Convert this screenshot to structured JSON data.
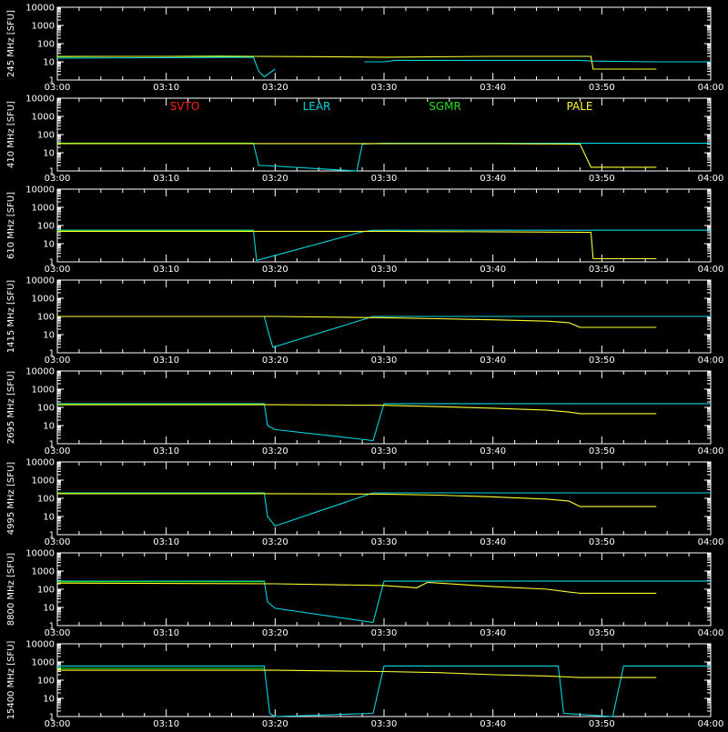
{
  "colors": {
    "background": "#000000",
    "axes": "#ffffff",
    "SVTO": "#ff2020",
    "LEAR": "#00d8e0",
    "SGMR": "#20e020",
    "PALE": "#ffff30"
  },
  "legend": [
    "SVTO",
    "LEAR",
    "SGMR",
    "PALE"
  ],
  "chart_data": [
    {
      "type": "line",
      "ylabel": "245  MHz  [SFU]",
      "xlabel": "",
      "xticks": [
        "03:00",
        "03:10",
        "03:20",
        "03:30",
        "03:40",
        "03:50",
        "04:00"
      ],
      "xlim": [
        "03:00",
        "04:00"
      ],
      "yscale": "log",
      "ylim": [
        1,
        10000
      ],
      "yticks": [
        "1",
        "10",
        "100",
        "1000",
        "10000"
      ],
      "series": [
        {
          "name": "LEAR",
          "x": [
            "03:00",
            "03:10",
            "03:18",
            "03:18.5",
            "03:19",
            "03:20",
            "03:28",
            "03:28.2",
            "03:30",
            "03:31",
            "03:40",
            "03:48",
            "03:49",
            "03:55",
            "04:00"
          ],
          "y": [
            16,
            17,
            18,
            3,
            1.5,
            4,
            null,
            10,
            10,
            12,
            12,
            12,
            11,
            10,
            10
          ]
        },
        {
          "name": "SGMR",
          "x": [
            "03:00",
            "03:05",
            "03:10",
            "03:15",
            "03:18"
          ],
          "y": [
            19,
            20,
            20,
            21,
            20
          ]
        },
        {
          "name": "PALE",
          "x": [
            "03:00",
            "03:10",
            "03:18",
            "03:25",
            "03:30",
            "03:40",
            "03:49",
            "03:49.2",
            "03:55"
          ],
          "y": [
            20,
            20,
            20,
            19,
            18,
            20,
            20,
            4,
            4
          ]
        }
      ]
    },
    {
      "type": "line",
      "ylabel": "410  MHz  [SFU]",
      "xlabel": "",
      "xticks": [
        "03:00",
        "03:10",
        "03:20",
        "03:30",
        "03:40",
        "03:50",
        "04:00"
      ],
      "xlim": [
        "03:00",
        "04:00"
      ],
      "yscale": "log",
      "ylim": [
        1,
        10000
      ],
      "yticks": [
        "1",
        "10",
        "100",
        "1000",
        "10000"
      ],
      "legend_labels": [
        "SVTO",
        "LEAR",
        "SGMR",
        "PALE"
      ],
      "series": [
        {
          "name": "LEAR",
          "x": [
            "03:00",
            "03:18",
            "03:18.5",
            "03:19",
            "03:27.5",
            "03:28",
            "03:30",
            "03:40",
            "03:49",
            "04:00"
          ],
          "y": [
            33,
            33,
            2,
            2,
            1,
            30,
            33,
            33,
            33,
            33
          ]
        },
        {
          "name": "SGMR",
          "x": [
            "03:00",
            "03:10",
            "03:18"
          ],
          "y": [
            34,
            34,
            34
          ]
        },
        {
          "name": "PALE",
          "x": [
            "03:00",
            "03:20",
            "03:30",
            "03:40",
            "03:48",
            "03:49",
            "03:55"
          ],
          "y": [
            32,
            32,
            32,
            32,
            30,
            1.6,
            1.6
          ]
        }
      ]
    },
    {
      "type": "line",
      "ylabel": "610  MHz  [SFU]",
      "xlabel": "",
      "xticks": [
        "03:00",
        "03:10",
        "03:20",
        "03:30",
        "03:40",
        "03:50",
        "04:00"
      ],
      "xlim": [
        "03:00",
        "04:00"
      ],
      "yscale": "log",
      "ylim": [
        1,
        10000
      ],
      "yticks": [
        "1",
        "10",
        "100",
        "1000",
        "10000"
      ],
      "series": [
        {
          "name": "LEAR",
          "x": [
            "03:00",
            "03:18",
            "03:18.3",
            "03:28",
            "03:29",
            "03:31",
            "03:40",
            "03:49",
            "04:00"
          ],
          "y": [
            55,
            55,
            1.2,
            45,
            55,
            55,
            55,
            55,
            55
          ]
        },
        {
          "name": "SGMR",
          "x": [
            "03:00",
            "03:10",
            "03:18"
          ],
          "y": [
            52,
            52,
            52
          ]
        },
        {
          "name": "PALE",
          "x": [
            "03:00",
            "03:20",
            "03:30",
            "03:40",
            "03:49",
            "03:49.2",
            "03:55"
          ],
          "y": [
            48,
            48,
            48,
            45,
            42,
            1.5,
            1.5
          ]
        }
      ]
    },
    {
      "type": "line",
      "ylabel": "1415  MHz  [SFU]",
      "xlabel": "",
      "xticks": [
        "03:00",
        "03:10",
        "03:20",
        "03:30",
        "03:40",
        "03:50",
        "04:00"
      ],
      "xlim": [
        "03:00",
        "04:00"
      ],
      "yscale": "log",
      "ylim": [
        1,
        10000
      ],
      "yticks": [
        "1",
        "10",
        "100",
        "1000",
        "10000"
      ],
      "series": [
        {
          "name": "LEAR",
          "x": [
            "03:00",
            "03:19",
            "03:19.3",
            "03:19.8",
            "03:29",
            "03:30",
            "03:32",
            "03:40",
            "03:50",
            "04:00"
          ],
          "y": [
            100,
            100,
            20,
            2,
            100,
            100,
            100,
            100,
            100,
            100
          ]
        },
        {
          "name": "SGMR",
          "x": [
            "03:00",
            "03:10",
            "03:19"
          ],
          "y": [
            100,
            100,
            100
          ]
        },
        {
          "name": "PALE",
          "x": [
            "03:00",
            "03:20",
            "03:30",
            "03:35",
            "03:40",
            "03:45",
            "03:47",
            "03:48",
            "03:55"
          ],
          "y": [
            100,
            100,
            85,
            75,
            65,
            55,
            45,
            25,
            25
          ]
        }
      ]
    },
    {
      "type": "line",
      "ylabel": "2695  MHz  [SFU]",
      "xlabel": "",
      "xticks": [
        "03:00",
        "03:10",
        "03:20",
        "03:30",
        "03:40",
        "03:50",
        "04:00"
      ],
      "xlim": [
        "03:00",
        "04:00"
      ],
      "yscale": "log",
      "ylim": [
        1,
        10000
      ],
      "yticks": [
        "1",
        "10",
        "100",
        "1000",
        "10000"
      ],
      "series": [
        {
          "name": "LEAR",
          "x": [
            "03:00",
            "03:19",
            "03:19.3",
            "03:20",
            "03:29",
            "03:30",
            "03:32",
            "03:40",
            "03:50",
            "04:00"
          ],
          "y": [
            160,
            160,
            10,
            6,
            1.5,
            160,
            160,
            160,
            160,
            160
          ]
        },
        {
          "name": "SGMR",
          "x": [
            "03:00",
            "03:10",
            "03:19"
          ],
          "y": [
            150,
            150,
            150
          ]
        },
        {
          "name": "PALE",
          "x": [
            "03:00",
            "03:20",
            "03:30",
            "03:35",
            "03:40",
            "03:45",
            "03:47",
            "03:48",
            "03:55"
          ],
          "y": [
            140,
            140,
            130,
            110,
            90,
            70,
            55,
            45,
            45
          ]
        }
      ]
    },
    {
      "type": "line",
      "ylabel": "4995  MHz  [SFU]",
      "xlabel": "",
      "xticks": [
        "03:00",
        "03:10",
        "03:20",
        "03:30",
        "03:40",
        "03:50",
        "04:00"
      ],
      "xlim": [
        "03:00",
        "04:00"
      ],
      "yscale": "log",
      "ylim": [
        1,
        10000
      ],
      "yticks": [
        "1",
        "10",
        "100",
        "1000",
        "10000"
      ],
      "series": [
        {
          "name": "LEAR",
          "x": [
            "03:00",
            "03:19",
            "03:19.3",
            "03:20",
            "03:29",
            "03:30",
            "03:32",
            "03:40",
            "03:50",
            "04:00"
          ],
          "y": [
            200,
            200,
            10,
            3,
            200,
            200,
            200,
            200,
            200,
            200
          ]
        },
        {
          "name": "SGMR",
          "x": [
            "03:00",
            "03:10",
            "03:19"
          ],
          "y": [
            190,
            190,
            190
          ]
        },
        {
          "name": "PALE",
          "x": [
            "03:00",
            "03:20",
            "03:30",
            "03:35",
            "03:40",
            "03:45",
            "03:47",
            "03:48",
            "03:55"
          ],
          "y": [
            180,
            180,
            170,
            150,
            120,
            90,
            70,
            35,
            35
          ]
        }
      ]
    },
    {
      "type": "line",
      "ylabel": "8800  MHz  [SFU]",
      "xlabel": "",
      "xticks": [
        "03:00",
        "03:10",
        "03:20",
        "03:30",
        "03:40",
        "03:50",
        "04:00"
      ],
      "xlim": [
        "03:00",
        "04:00"
      ],
      "yscale": "log",
      "ylim": [
        1,
        10000
      ],
      "yticks": [
        "1",
        "10",
        "100",
        "1000",
        "10000"
      ],
      "series": [
        {
          "name": "LEAR",
          "x": [
            "03:00",
            "03:19",
            "03:19.3",
            "03:20",
            "03:29",
            "03:30",
            "03:32",
            "03:40",
            "03:50",
            "04:00"
          ],
          "y": [
            280,
            280,
            20,
            9,
            1.5,
            280,
            280,
            280,
            280,
            280
          ]
        },
        {
          "name": "SGMR",
          "x": [
            "03:00",
            "03:10",
            "03:19"
          ],
          "y": [
            260,
            260,
            260
          ]
        },
        {
          "name": "PALE",
          "x": [
            "03:00",
            "03:20",
            "03:30",
            "03:33",
            "03:34",
            "03:40",
            "03:45",
            "03:47",
            "03:48",
            "03:55"
          ],
          "y": [
            220,
            200,
            160,
            120,
            240,
            140,
            100,
            70,
            60,
            60
          ]
        }
      ]
    },
    {
      "type": "line",
      "ylabel": "15400  MHz  [SFU]",
      "xlabel": "",
      "xticks": [
        "03:00",
        "03:10",
        "03:20",
        "03:30",
        "03:40",
        "03:50",
        "04:00"
      ],
      "xlim": [
        "03:00",
        "04:00"
      ],
      "yscale": "log",
      "ylim": [
        1,
        10000
      ],
      "yticks": [
        "1",
        "10",
        "100",
        "1000",
        "10000"
      ],
      "series": [
        {
          "name": "LEAR",
          "x": [
            "03:00",
            "03:19",
            "03:19.5",
            "03:20",
            "03:29",
            "03:30",
            "03:32",
            "03:40",
            "03:46",
            "03:46.5",
            "03:51",
            "03:52",
            "04:00"
          ],
          "y": [
            600,
            600,
            1.5,
            1,
            1.5,
            600,
            600,
            600,
            600,
            1.5,
            1,
            600,
            600
          ]
        },
        {
          "name": "SGMR",
          "x": [
            "03:00",
            "03:10",
            "03:19"
          ],
          "y": [
            450,
            450,
            450
          ]
        },
        {
          "name": "PALE",
          "x": [
            "03:00",
            "03:20",
            "03:30",
            "03:35",
            "03:40",
            "03:45",
            "03:47",
            "03:48",
            "03:55"
          ],
          "y": [
            350,
            350,
            300,
            260,
            200,
            170,
            150,
            140,
            140
          ]
        }
      ]
    }
  ]
}
